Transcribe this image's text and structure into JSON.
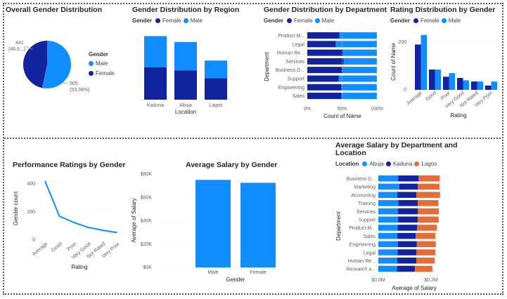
{
  "colors": {
    "male": "#118DFF",
    "female": "#12239E",
    "abuja": "#118DFF",
    "kaduna": "#12239E",
    "lagos": "#E66C37"
  },
  "panels": {
    "overall": {
      "title": "Overall Gender Distribution",
      "legend_title": "Gender",
      "legend": [
        "Male",
        "Female"
      ],
      "label_female_value": "441",
      "label_female_pct": "(46.6...)",
      "label_male_value": "505",
      "label_male_pct": "(53.38%)"
    },
    "region": {
      "title": "Gender Distribution by Region",
      "legend_title": "Gender",
      "legend": [
        "Female",
        "Male"
      ]
    },
    "department": {
      "title": "Gender Distribution by Department",
      "legend_title": "Gender",
      "legend": [
        "Female",
        "Male"
      ]
    },
    "rating_dist": {
      "title": "Rating Distribution by Gender",
      "legend_title": "Gender",
      "legend": [
        "Female",
        "Male"
      ]
    },
    "performance": {
      "title": "Performance Ratings by Gender"
    },
    "avg_salary": {
      "title": "Average Salary by Gender"
    },
    "salary_dept": {
      "title_line1": "Average Salary by Department and",
      "title_line2": "Location",
      "legend_title": "Location",
      "legend": [
        "Abuja",
        "Kaduna",
        "Lagos"
      ]
    }
  },
  "chart_data": [
    {
      "id": "overall",
      "type": "pie",
      "categories": [
        "Male",
        "Female"
      ],
      "values": [
        505,
        441
      ]
    },
    {
      "id": "region",
      "type": "bar",
      "stacked": true,
      "categories": [
        "Kaduna",
        "Abuja",
        "Lagos"
      ],
      "series": [
        {
          "name": "Female",
          "values": [
            165,
            150,
            110
          ]
        },
        {
          "name": "Male",
          "values": [
            160,
            145,
            90
          ]
        }
      ],
      "xlabel": "Location",
      "ylim": [
        0,
        330
      ]
    },
    {
      "id": "department",
      "type": "bar",
      "orientation": "horizontal",
      "stacked_percent": true,
      "categories": [
        "Product M...",
        "Legal",
        "Human Re...",
        "Services",
        "Business D...",
        "Support",
        "Engineering",
        "Sales"
      ],
      "series": [
        {
          "name": "Female",
          "values": [
            46,
            41,
            51,
            52,
            50,
            45,
            49,
            49
          ]
        },
        {
          "name": "Male",
          "values": [
            54,
            59,
            49,
            48,
            50,
            55,
            51,
            51
          ]
        }
      ],
      "xlabel": "Count of Name",
      "ylabel": "Department",
      "xticks": [
        "0%",
        "50%",
        "100%"
      ]
    },
    {
      "id": "rating_dist",
      "type": "bar",
      "categories": [
        "Average",
        "Good",
        "Poor",
        "Very Good",
        "Not Rated",
        "Very Poor"
      ],
      "series": [
        {
          "name": "Female",
          "values": [
            190,
            85,
            55,
            50,
            35,
            18
          ]
        },
        {
          "name": "Male",
          "values": [
            230,
            85,
            70,
            40,
            35,
            35
          ]
        }
      ],
      "xlabel": "Rating",
      "ylabel": "Count of Name",
      "ylim": [
        0,
        250
      ],
      "yticks": [
        "0",
        "200"
      ]
    },
    {
      "id": "performance",
      "type": "line",
      "categories": [
        "Average",
        "Good",
        "Poor",
        "Very Good",
        "Not Rated",
        "Very Poor"
      ],
      "series": [
        {
          "name": "",
          "values": [
            420,
            170,
            125,
            90,
            70,
            53
          ]
        }
      ],
      "xlabel": "Rating",
      "ylabel": "Gender count",
      "ylim": [
        0,
        450
      ],
      "yticks": [
        "0",
        "200",
        "400"
      ]
    },
    {
      "id": "avg_salary",
      "type": "bar",
      "categories": [
        "Male",
        "Female"
      ],
      "values": [
        75000,
        72500
      ],
      "xlabel": "Gender",
      "ylabel": "Average of Salary",
      "ylim": [
        0,
        80000
      ],
      "yticks": [
        "$0K",
        "$20K",
        "$40K",
        "$60K",
        "$80K"
      ]
    },
    {
      "id": "salary_dept",
      "type": "bar",
      "orientation": "horizontal",
      "stacked": true,
      "categories": [
        "Business D...",
        "Marketing",
        "Accounting",
        "Training",
        "Services",
        "Support",
        "Product M...",
        "Sales",
        "Engineering",
        "Legal",
        "Human Re...",
        "Research a..."
      ],
      "series": [
        {
          "name": "Abuja",
          "values": [
            75000,
            80000,
            72000,
            76000,
            74000,
            75000,
            73000,
            72000,
            74000,
            73000,
            72000,
            71000
          ]
        },
        {
          "name": "Kaduna",
          "values": [
            78000,
            70000,
            72000,
            74000,
            76000,
            75000,
            74000,
            70000,
            72000,
            71000,
            72000,
            68000
          ]
        },
        {
          "name": "Lagos",
          "values": [
            80000,
            82000,
            90000,
            78000,
            80000,
            79000,
            75000,
            74000,
            72000,
            72000,
            70000,
            66000
          ]
        }
      ],
      "xlabel": "Average of Salary",
      "ylabel": "Department",
      "xticks": [
        "$0.0M",
        "$0.2M"
      ]
    }
  ]
}
